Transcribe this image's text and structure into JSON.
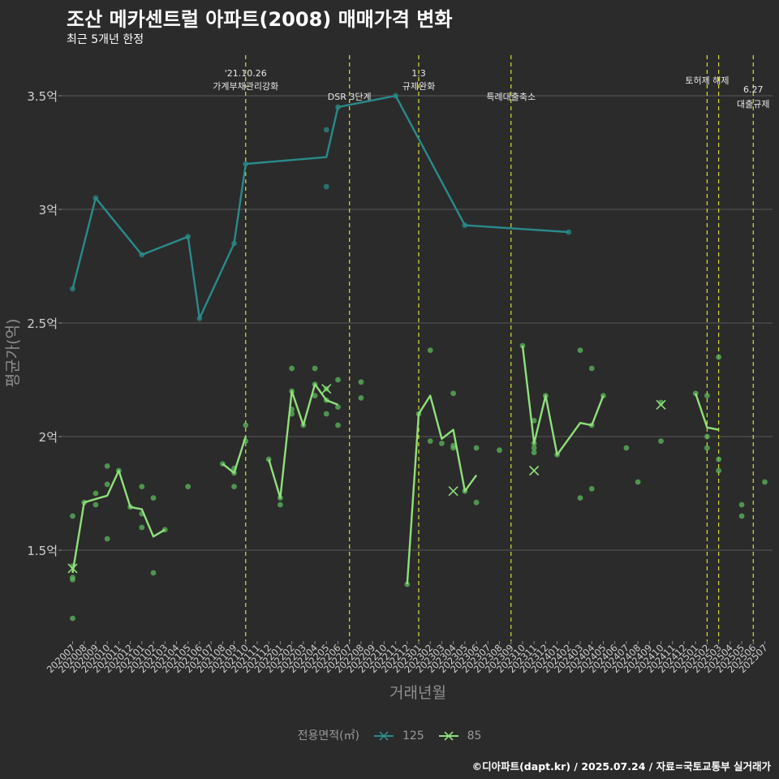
{
  "header": {
    "title": "조산 메카센트럴 아파트(2008) 매매가격 변화",
    "subtitle": "최근 5개년 한정"
  },
  "footer": {
    "caption": "©디아파트(dapt.kr) / 2025.07.24 / 자료=국토교통부 실거래가"
  },
  "legend": {
    "title": "전용면적(㎡)",
    "items": [
      {
        "label": "125",
        "color": "#2a8a8a"
      },
      {
        "label": "85",
        "color": "#8fe07a"
      }
    ]
  },
  "colors": {
    "background": "#2b2b2b",
    "grid": "#5a5a5a",
    "event_line": "#d8e030",
    "series_125": "#2a8a8a",
    "series_85": "#8fe07a",
    "points_85": "#5cb85c"
  },
  "chart_data": {
    "type": "line",
    "title": "조산 메카센트럴 아파트(2008) 매매가격 변화",
    "xlabel": "거래년월",
    "ylabel": "평균가(억)",
    "ylim": [
      1.1,
      3.7
    ],
    "yticks": [
      {
        "value": 1.5,
        "label": "1.5억"
      },
      {
        "value": 2.0,
        "label": "2억"
      },
      {
        "value": 2.5,
        "label": "2.5억"
      },
      {
        "value": 3.0,
        "label": "3억"
      },
      {
        "value": 3.5,
        "label": "3.5억"
      }
    ],
    "categories": [
      "202007",
      "202008",
      "202009",
      "202010",
      "202011",
      "202012",
      "202101",
      "202102",
      "202103",
      "202104",
      "202105",
      "202106",
      "202107",
      "202108",
      "202109",
      "202110",
      "202111",
      "202112",
      "202201",
      "202202",
      "202203",
      "202204",
      "202205",
      "202206",
      "202207",
      "202208",
      "202209",
      "202210",
      "202211",
      "202212",
      "202301",
      "202302",
      "202303",
      "202304",
      "202305",
      "202306",
      "202307",
      "202308",
      "202309",
      "202310",
      "202311",
      "202312",
      "202401",
      "202402",
      "202403",
      "202404",
      "202405",
      "202406",
      "202407",
      "202408",
      "202409",
      "202410",
      "202411",
      "202412",
      "202501",
      "202502",
      "202503",
      "202504",
      "202505",
      "202506",
      "202507"
    ],
    "events": [
      {
        "x": 15,
        "lines": [
          "'21.10.26",
          "가계부채관리강화"
        ],
        "level": 0
      },
      {
        "x": 24,
        "lines": [
          "DSR 3단계"
        ],
        "level": 2
      },
      {
        "x": 30,
        "lines": [
          "1.3",
          "규제완화"
        ],
        "level": 0
      },
      {
        "x": 38,
        "lines": [
          "특례대출축소"
        ],
        "level": 2
      },
      {
        "x": 55,
        "lines": [
          "토허제 해제"
        ],
        "level": 1
      },
      {
        "x": 56,
        "lines": [],
        "level": 1
      },
      {
        "x": 59,
        "lines": [
          "6.27",
          "대출규제"
        ],
        "level": 3
      }
    ],
    "series": [
      {
        "name": "125",
        "color": "#2a8a8a",
        "line": [
          [
            0,
            2.65
          ],
          [
            2,
            3.05
          ],
          [
            6,
            2.8
          ],
          [
            10,
            2.88
          ],
          [
            11,
            2.52
          ],
          [
            14,
            2.85
          ],
          [
            15,
            3.2
          ],
          [
            22,
            3.23
          ],
          [
            23,
            3.45
          ],
          [
            28,
            3.5
          ],
          [
            34,
            2.93
          ],
          [
            43,
            2.9
          ]
        ],
        "points": [
          [
            0,
            2.65
          ],
          [
            2,
            3.05
          ],
          [
            6,
            2.8
          ],
          [
            10,
            2.88
          ],
          [
            11,
            2.52
          ],
          [
            14,
            2.85
          ],
          [
            15,
            3.2
          ],
          [
            22,
            3.35
          ],
          [
            22,
            3.1
          ],
          [
            23,
            3.45
          ],
          [
            28,
            3.5
          ],
          [
            34,
            2.93
          ],
          [
            43,
            2.9
          ]
        ],
        "crosses": []
      },
      {
        "name": "85",
        "color": "#8fe07a",
        "line_segments": [
          [
            [
              0,
              1.4
            ],
            [
              1,
              1.71
            ],
            [
              3,
              1.74
            ],
            [
              4,
              1.85
            ],
            [
              5,
              1.69
            ],
            [
              6,
              1.68
            ],
            [
              7,
              1.56
            ],
            [
              8,
              1.59
            ]
          ],
          [
            [
              13,
              1.88
            ],
            [
              14,
              1.84
            ],
            [
              15,
              2.0
            ]
          ],
          [
            [
              17,
              1.9
            ],
            [
              18,
              1.73
            ],
            [
              19,
              2.2
            ],
            [
              20,
              2.05
            ],
            [
              21,
              2.23
            ],
            [
              22,
              2.16
            ],
            [
              23,
              2.14
            ]
          ],
          [
            [
              29,
              1.35
            ],
            [
              30,
              2.1
            ],
            [
              31,
              2.18
            ],
            [
              32,
              1.99
            ],
            [
              33,
              2.03
            ],
            [
              34,
              1.76
            ],
            [
              35,
              1.83
            ]
          ],
          [
            [
              39,
              2.4
            ],
            [
              40,
              1.97
            ],
            [
              41,
              2.18
            ],
            [
              42,
              1.92
            ],
            [
              44,
              2.06
            ],
            [
              45,
              2.05
            ],
            [
              46,
              2.18
            ]
          ],
          [
            [
              54,
              2.19
            ],
            [
              55,
              2.04
            ],
            [
              56,
              2.03
            ]
          ]
        ],
        "points": [
          [
            0,
            1.65
          ],
          [
            0,
            1.43
          ],
          [
            0,
            1.37
          ],
          [
            0,
            1.38
          ],
          [
            0,
            1.2
          ],
          [
            1,
            1.71
          ],
          [
            2,
            1.7
          ],
          [
            2,
            1.75
          ],
          [
            3,
            1.87
          ],
          [
            3,
            1.79
          ],
          [
            3,
            1.55
          ],
          [
            4,
            1.85
          ],
          [
            5,
            1.69
          ],
          [
            6,
            1.78
          ],
          [
            6,
            1.66
          ],
          [
            6,
            1.6
          ],
          [
            7,
            1.73
          ],
          [
            7,
            1.4
          ],
          [
            8,
            1.59
          ],
          [
            10,
            1.78
          ],
          [
            13,
            1.88
          ],
          [
            14,
            1.86
          ],
          [
            14,
            1.84
          ],
          [
            14,
            1.78
          ],
          [
            15,
            1.98
          ],
          [
            15,
            2.05
          ],
          [
            17,
            1.9
          ],
          [
            18,
            1.7
          ],
          [
            18,
            1.73
          ],
          [
            19,
            2.3
          ],
          [
            19,
            2.2
          ],
          [
            19,
            2.12
          ],
          [
            19,
            2.1
          ],
          [
            20,
            2.05
          ],
          [
            21,
            2.3
          ],
          [
            21,
            2.18
          ],
          [
            21,
            2.23
          ],
          [
            22,
            2.21
          ],
          [
            22,
            2.1
          ],
          [
            22,
            2.16
          ],
          [
            23,
            2.25
          ],
          [
            23,
            2.13
          ],
          [
            23,
            2.05
          ],
          [
            25,
            2.24
          ],
          [
            25,
            2.17
          ],
          [
            29,
            1.35
          ],
          [
            30,
            2.1
          ],
          [
            31,
            2.38
          ],
          [
            31,
            1.98
          ],
          [
            32,
            1.97
          ],
          [
            33,
            2.19
          ],
          [
            33,
            1.96
          ],
          [
            33,
            1.95
          ],
          [
            34,
            1.76
          ],
          [
            35,
            1.95
          ],
          [
            35,
            1.71
          ],
          [
            37,
            1.94
          ],
          [
            39,
            2.4
          ],
          [
            40,
            2.07
          ],
          [
            40,
            1.97
          ],
          [
            40,
            1.93
          ],
          [
            40,
            1.95
          ],
          [
            41,
            2.18
          ],
          [
            42,
            1.92
          ],
          [
            44,
            2.38
          ],
          [
            44,
            1.73
          ],
          [
            45,
            2.3
          ],
          [
            45,
            2.05
          ],
          [
            45,
            1.77
          ],
          [
            46,
            2.18
          ],
          [
            48,
            1.95
          ],
          [
            49,
            1.8
          ],
          [
            51,
            2.15
          ],
          [
            51,
            1.98
          ],
          [
            54,
            2.19
          ],
          [
            55,
            2.18
          ],
          [
            55,
            2.0
          ],
          [
            55,
            1.95
          ],
          [
            56,
            2.35
          ],
          [
            56,
            1.9
          ],
          [
            56,
            1.85
          ],
          [
            58,
            1.7
          ],
          [
            58,
            1.65
          ],
          [
            60,
            1.8
          ]
        ],
        "crosses": [
          [
            0,
            1.42
          ],
          [
            22,
            2.21
          ],
          [
            33,
            1.76
          ],
          [
            40,
            1.85
          ],
          [
            51,
            2.14
          ]
        ]
      }
    ]
  }
}
